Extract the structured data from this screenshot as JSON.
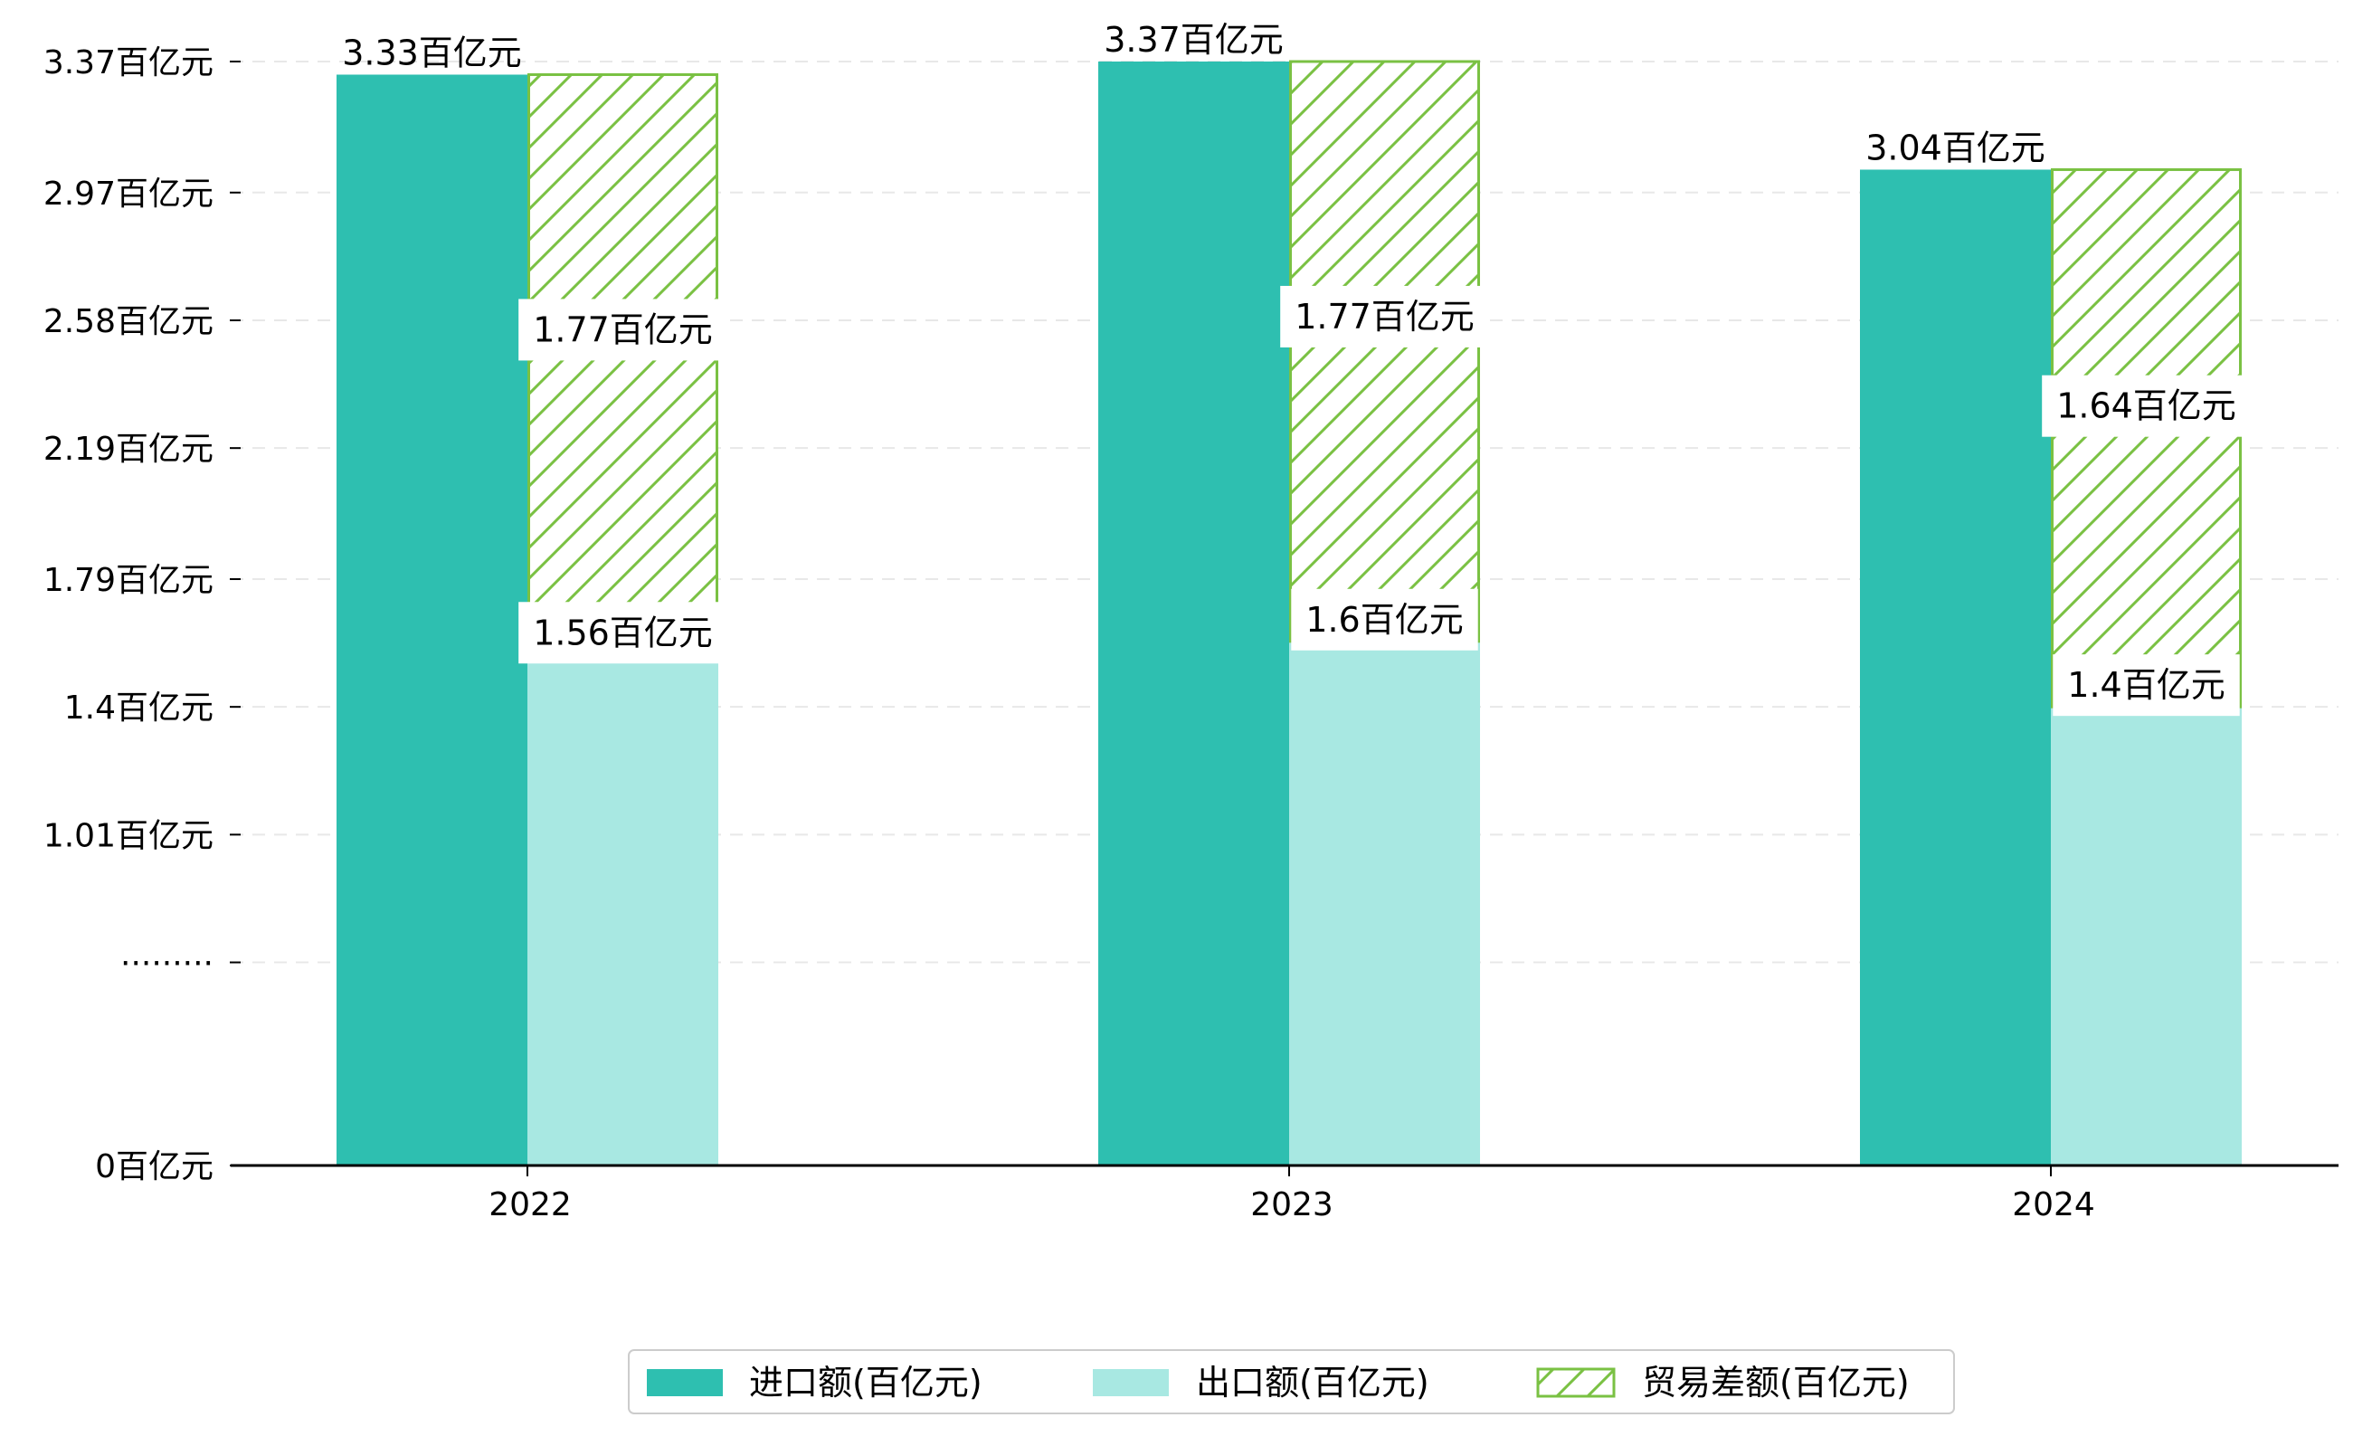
{
  "chart_data": {
    "type": "bar",
    "categories": [
      "2022",
      "2023",
      "2024"
    ],
    "series": [
      {
        "name": "进口额(百亿元)",
        "values": [
          3.33,
          3.37,
          3.04
        ],
        "labels": [
          "3.33百亿元",
          "3.37百亿元",
          "3.04百亿元"
        ],
        "color": "#2ebfb0",
        "stacked": false
      },
      {
        "name": "出口额(百亿元)",
        "values": [
          1.56,
          1.6,
          1.4
        ],
        "labels": [
          "1.56百亿元",
          "1.6百亿元",
          "1.4百亿元"
        ],
        "color": "#a8e8e2",
        "stack": "trade"
      },
      {
        "name": "贸易差额(百亿元)",
        "values": [
          1.77,
          1.77,
          1.64
        ],
        "labels": [
          "1.77百亿元",
          "1.77百亿元",
          "1.64百亿元"
        ],
        "color": "#7ac143",
        "pattern": "hatch",
        "stack": "trade"
      }
    ],
    "y_ticks": [
      {
        "value": 0,
        "label": "0百亿元"
      },
      {
        "value": 0.62,
        "label": "·········"
      },
      {
        "value": 1.01,
        "label": "1.01百亿元"
      },
      {
        "value": 1.4,
        "label": "1.4百亿元"
      },
      {
        "value": 1.79,
        "label": "1.79百亿元"
      },
      {
        "value": 2.19,
        "label": "2.19百亿元"
      },
      {
        "value": 2.58,
        "label": "2.58百亿元"
      },
      {
        "value": 2.97,
        "label": "2.97百亿元"
      },
      {
        "value": 3.37,
        "label": "3.37百亿元"
      }
    ],
    "y_axis_break": true,
    "ylim": [
      0,
      3.37
    ],
    "grid": "horizontal-dashed",
    "legend": "bottom-center",
    "title": "",
    "xlabel": "",
    "ylabel": ""
  }
}
